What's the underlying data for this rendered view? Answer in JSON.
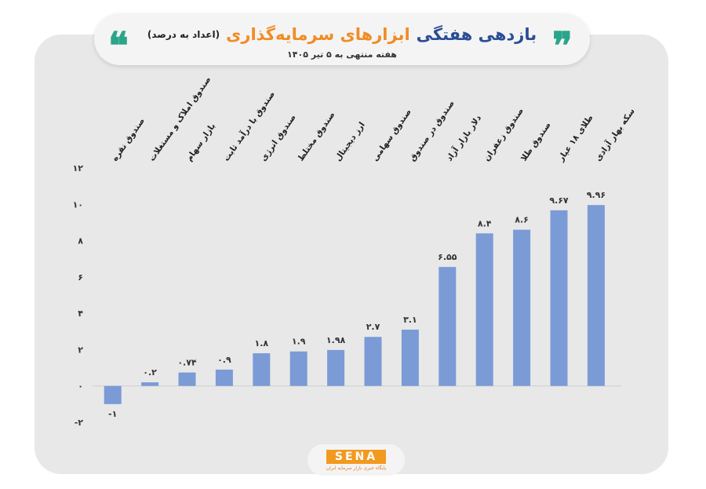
{
  "header": {
    "title_main": "بازدهی هفتگی",
    "title_accent": "ابزارهای سرمایه‌گذاری",
    "title_unit": "(اعداد به درصد)",
    "subtitle": "هفته منتهی به ۵ تیر ۱۴۰۵",
    "quote_open": "❞",
    "quote_close": "❝"
  },
  "logo": {
    "name": "SENA",
    "tagline": "پایگاه خبری بازار سرمایه ایران"
  },
  "colors": {
    "bar": "#7b9bd6",
    "accent": "#f08c24",
    "title": "#2a4e96",
    "quote": "#2aa58a"
  },
  "chart_data": {
    "type": "bar",
    "title": "",
    "xlabel": "",
    "ylabel": "",
    "ylim": [
      -2,
      12
    ],
    "yticks": [
      -2,
      0,
      2,
      4,
      6,
      8,
      10,
      12
    ],
    "ytick_labels": [
      "-۲",
      "۰",
      "۲",
      "۴",
      "۶",
      "۸",
      "۱۰",
      "۱۲"
    ],
    "grid": false,
    "categories": [
      "صندوق نقره",
      "صندوق املاک و مستغلات",
      "بازار سهام",
      "صندوق با درآمد ثابت",
      "صندوق انرژی",
      "صندوق مختلط",
      "ارز دیجیتال",
      "صندوق سهامی",
      "صندوق در صندوق",
      "دلار بازار آزاد",
      "صندوق زعفران",
      "صندوق طلا",
      "طلای ۱۸ عیار",
      "سکه بهار آزادی"
    ],
    "values": [
      -1,
      0.2,
      0.74,
      0.9,
      1.8,
      1.9,
      1.98,
      2.7,
      3.1,
      6.55,
      8.4,
      8.6,
      9.67,
      9.96
    ],
    "value_labels": [
      "-۱",
      "۰.۲",
      "۰.۷۴",
      "۰.۹",
      "۱.۸",
      "۱.۹",
      "۱.۹۸",
      "۲.۷",
      "۳.۱",
      "۶.۵۵",
      "۸.۴",
      "۸.۶",
      "۹.۶۷",
      "۹.۹۶"
    ]
  }
}
